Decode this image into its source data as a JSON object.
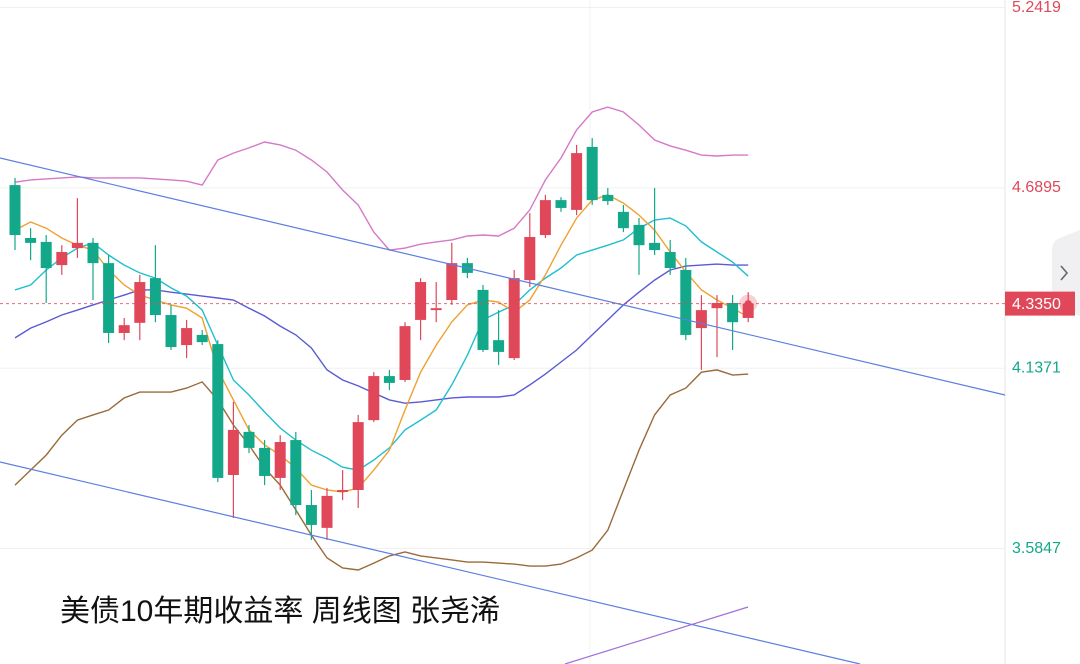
{
  "chart_data": {
    "type": "candlestick",
    "title": "美债10年期收益率 周线图 张尧浠",
    "ylim": [
      3.231,
      5.265
    ],
    "yticks": [
      5.2419,
      4.6895,
      4.1371,
      3.5847
    ],
    "grid": true,
    "up_color": "#e0485a",
    "down_color": "#14a88a",
    "last_price": {
      "value": 4.335,
      "label": "4.3350"
    },
    "open": [
      4.698,
      4.536,
      4.524,
      4.453,
      4.505,
      4.521,
      4.459,
      4.245,
      4.276,
      4.413,
      4.3,
      4.208,
      4.239,
      4.211,
      3.81,
      3.942,
      3.893,
      3.801,
      3.917,
      3.718,
      3.648,
      3.758,
      3.764,
      3.978,
      4.113,
      4.101,
      4.285,
      4.315,
      4.346,
      4.459,
      4.377,
      4.223,
      4.168,
      4.407,
      4.545,
      4.652,
      4.622,
      4.815,
      4.668,
      4.616,
      4.576,
      4.521,
      4.493,
      4.438,
      4.26,
      4.321,
      4.337,
      4.291
    ],
    "high": [
      4.72,
      4.566,
      4.545,
      4.514,
      4.658,
      4.536,
      4.484,
      4.291,
      4.423,
      4.514,
      4.331,
      4.285,
      4.254,
      4.223,
      4.034,
      3.963,
      3.917,
      3.932,
      3.942,
      3.764,
      3.77,
      3.825,
      3.994,
      4.125,
      4.132,
      4.278,
      4.413,
      4.401,
      4.521,
      4.475,
      4.392,
      4.315,
      4.438,
      4.612,
      4.668,
      4.661,
      4.821,
      4.842,
      4.689,
      4.637,
      4.597,
      4.689,
      4.53,
      4.475,
      4.361,
      4.361,
      4.361,
      4.37
    ],
    "low": [
      4.499,
      4.468,
      4.337,
      4.423,
      4.475,
      4.346,
      4.214,
      4.223,
      4.223,
      4.278,
      4.193,
      4.168,
      4.208,
      3.788,
      3.678,
      3.877,
      3.779,
      3.764,
      3.687,
      3.611,
      3.611,
      3.733,
      3.709,
      3.972,
      4.07,
      4.095,
      4.223,
      4.278,
      4.331,
      4.413,
      4.187,
      4.147,
      4.162,
      4.386,
      4.536,
      4.616,
      4.606,
      4.637,
      4.637,
      4.554,
      4.423,
      4.484,
      4.423,
      4.223,
      4.132,
      4.171,
      4.193,
      4.278
    ],
    "close": [
      4.545,
      4.521,
      4.444,
      4.493,
      4.521,
      4.459,
      4.245,
      4.269,
      4.401,
      4.3,
      4.202,
      4.26,
      4.217,
      3.801,
      3.948,
      3.893,
      3.807,
      3.911,
      3.718,
      3.657,
      3.746,
      3.764,
      3.972,
      4.113,
      4.092,
      4.266,
      4.401,
      4.321,
      4.459,
      4.429,
      4.193,
      4.187,
      4.413,
      4.539,
      4.652,
      4.628,
      4.796,
      4.652,
      4.649,
      4.566,
      4.514,
      4.499,
      4.444,
      4.239,
      4.315,
      4.337,
      4.278,
      4.335
    ],
    "lines": [
      {
        "color": "#d678c8",
        "values": [
          4.707,
          4.714,
          4.717,
          4.72,
          4.723,
          4.72,
          4.72,
          4.72,
          4.72,
          4.717,
          4.714,
          4.71,
          4.698,
          4.775,
          4.796,
          4.812,
          4.83,
          4.821,
          4.805,
          4.775,
          4.738,
          4.683,
          4.637,
          4.554,
          4.499,
          4.505,
          4.517,
          4.524,
          4.53,
          4.542,
          4.545,
          4.542,
          4.566,
          4.622,
          4.714,
          4.781,
          4.867,
          4.922,
          4.937,
          4.922,
          4.882,
          4.836,
          4.818,
          4.805,
          4.79,
          4.787,
          4.79,
          4.79
        ]
      },
      {
        "color": "#9a6a3a",
        "values": [
          3.779,
          3.825,
          3.871,
          3.932,
          3.978,
          3.994,
          4.009,
          4.046,
          4.064,
          4.064,
          4.064,
          4.076,
          4.095,
          4.04,
          3.963,
          3.902,
          3.831,
          3.779,
          3.703,
          3.626,
          3.556,
          3.525,
          3.519,
          3.54,
          3.562,
          3.574,
          3.562,
          3.556,
          3.55,
          3.543,
          3.543,
          3.54,
          3.537,
          3.531,
          3.531,
          3.537,
          3.556,
          3.58,
          3.641,
          3.764,
          3.886,
          3.994,
          4.055,
          4.076,
          4.125,
          4.132,
          4.116,
          4.119
        ]
      },
      {
        "color": "#5a5ad6",
        "values": [
          4.23,
          4.26,
          4.279,
          4.3,
          4.315,
          4.331,
          4.346,
          4.361,
          4.377,
          4.377,
          4.37,
          4.364,
          4.358,
          4.352,
          4.346,
          4.321,
          4.297,
          4.266,
          4.239,
          4.199,
          4.132,
          4.101,
          4.083,
          4.061,
          4.04,
          4.03,
          4.034,
          4.04,
          4.046,
          4.049,
          4.049,
          4.049,
          4.055,
          4.086,
          4.119,
          4.156,
          4.193,
          4.239,
          4.285,
          4.331,
          4.37,
          4.407,
          4.438,
          4.45,
          4.453,
          4.456,
          4.453,
          4.453
        ]
      },
      {
        "color": "#1fbfcf",
        "values": [
          4.377,
          4.392,
          4.438,
          4.475,
          4.505,
          4.521,
          4.484,
          4.453,
          4.429,
          4.413,
          4.383,
          4.358,
          4.315,
          4.208,
          4.101,
          4.055,
          4.003,
          3.954,
          3.917,
          3.886,
          3.862,
          3.834,
          3.825,
          3.856,
          3.893,
          3.948,
          3.978,
          4.009,
          4.086,
          4.177,
          4.285,
          4.309,
          4.331,
          4.377,
          4.413,
          4.444,
          4.484,
          4.499,
          4.514,
          4.53,
          4.566,
          4.591,
          4.597,
          4.573,
          4.524,
          4.493,
          4.462,
          4.419
        ]
      },
      {
        "color": "#f0a030",
        "values": [
          4.56,
          4.585,
          4.566,
          4.536,
          4.514,
          4.499,
          4.438,
          4.392,
          4.361,
          4.346,
          4.331,
          4.321,
          4.291,
          4.132,
          4.04,
          3.948,
          3.902,
          3.871,
          3.831,
          3.779,
          3.764,
          3.758,
          3.77,
          3.825,
          3.886,
          4.009,
          4.125,
          4.208,
          4.279,
          4.331,
          4.346,
          4.34,
          4.309,
          4.346,
          4.423,
          4.514,
          4.597,
          4.652,
          4.668,
          4.643,
          4.606,
          4.56,
          4.493,
          4.432,
          4.377,
          4.346,
          4.321,
          4.294
        ]
      }
    ]
  }
}
